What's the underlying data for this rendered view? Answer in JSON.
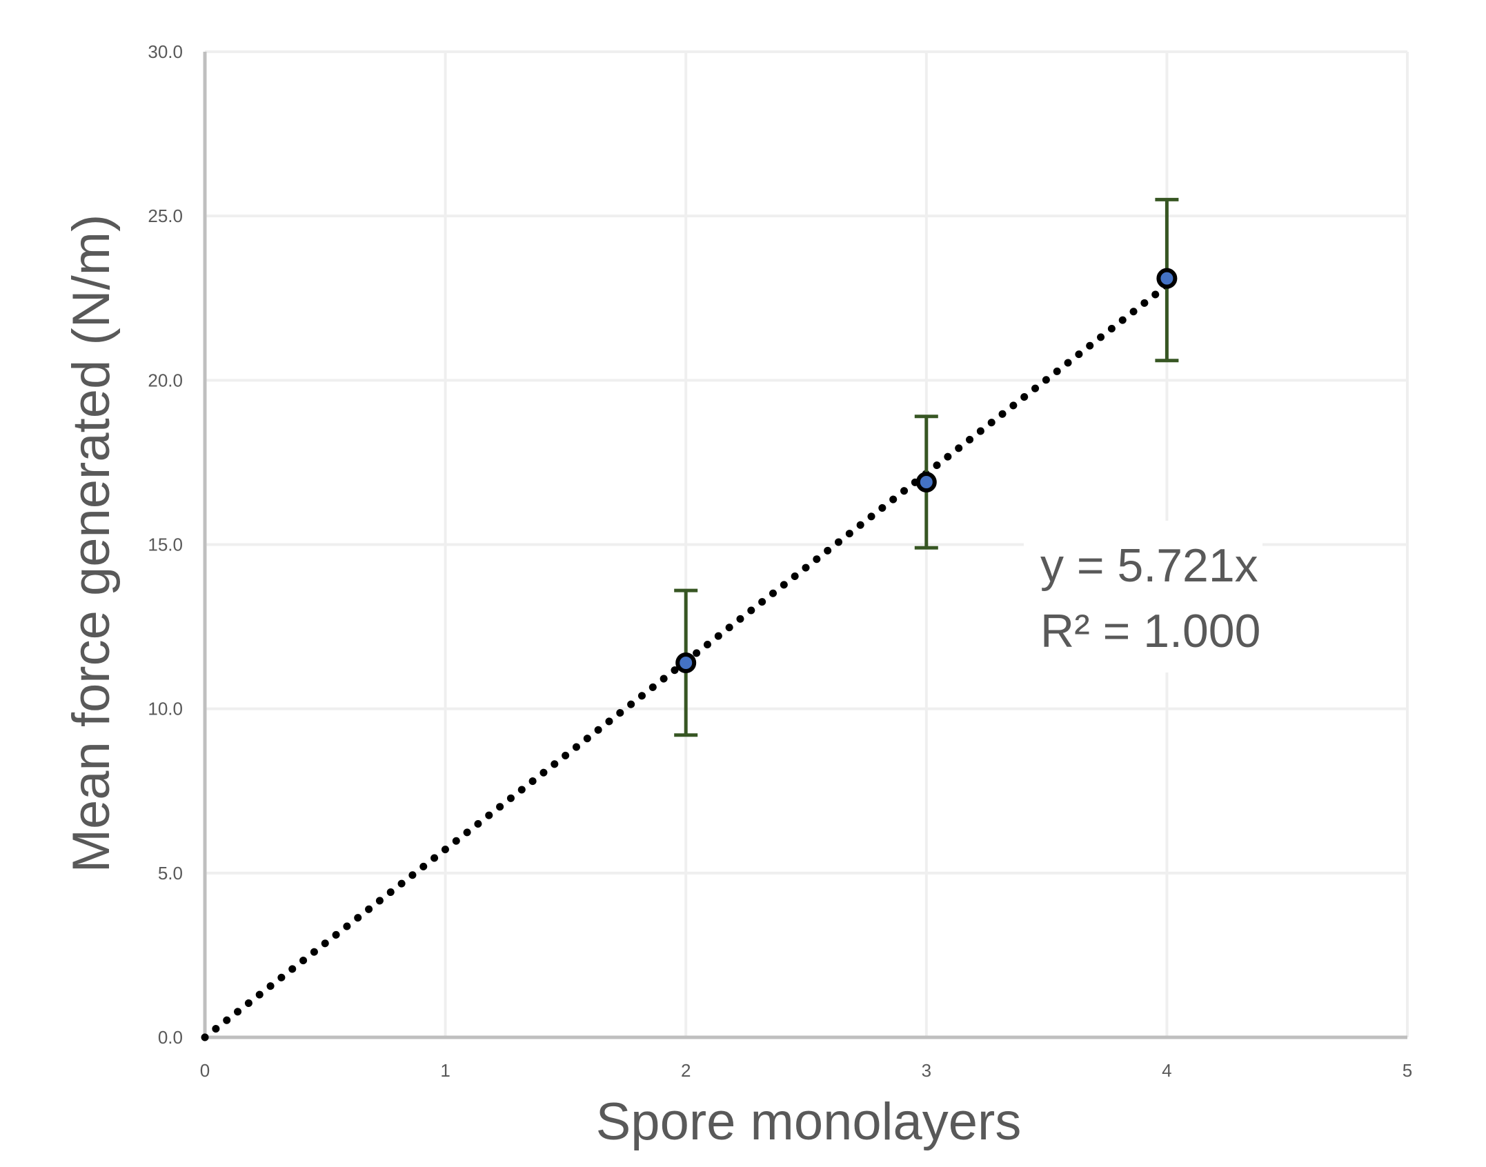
{
  "chart_data": {
    "type": "scatter",
    "xlabel": "Spore monolayers",
    "ylabel": "Mean force generated (N/m)",
    "xlim": [
      0,
      5
    ],
    "ylim": [
      0,
      30
    ],
    "x_ticks": [
      "0",
      "1",
      "2",
      "3",
      "4",
      "5"
    ],
    "y_ticks": [
      "0.0",
      "5.0",
      "10.0",
      "15.0",
      "20.0",
      "25.0",
      "30.0"
    ],
    "grid": true,
    "series": [
      {
        "x": [
          2,
          3,
          4
        ],
        "y": [
          11.4,
          16.9,
          23.1
        ],
        "error_low": [
          9.2,
          14.9,
          20.6
        ],
        "error_high": [
          13.6,
          18.9,
          25.5
        ],
        "marker_color": "#4472c4",
        "marker_edge": "#000000",
        "error_color": "#375623"
      }
    ],
    "trendline": {
      "type": "linear-through-origin",
      "slope": 5.721,
      "color": "#000000",
      "style": "dotted",
      "equation": "y = 5.721x",
      "r_squared": "R² = 1.000"
    }
  },
  "colors": {
    "axis": "#bfbfbf",
    "grid": "#efefef",
    "text": "#595959"
  }
}
